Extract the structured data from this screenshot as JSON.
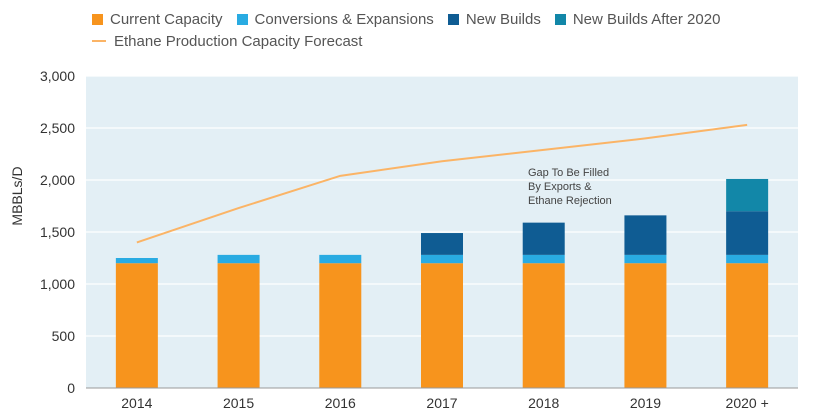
{
  "chart_data": {
    "type": "bar",
    "stacked": true,
    "categories": [
      "2014",
      "2015",
      "2016",
      "2017",
      "2018",
      "2019",
      "2020 +"
    ],
    "series": [
      {
        "name": "Current Capacity",
        "color": "#F7941D",
        "values": [
          1200,
          1200,
          1200,
          1200,
          1200,
          1200,
          1200
        ]
      },
      {
        "name": "Conversions & Expansions",
        "color": "#29ABE2",
        "values": [
          50,
          80,
          80,
          80,
          80,
          80,
          80
        ]
      },
      {
        "name": "New Builds",
        "color": "#0F5C93",
        "values": [
          0,
          0,
          0,
          210,
          310,
          380,
          420
        ]
      },
      {
        "name": "New Builds After 2020",
        "color": "#1287A8",
        "values": [
          0,
          0,
          0,
          0,
          0,
          0,
          310
        ]
      }
    ],
    "line_series": {
      "name": "Ethane Production Capacity Forecast",
      "color": "#FBB466",
      "values": [
        1400,
        1730,
        2040,
        2180,
        2290,
        2400,
        2530
      ]
    },
    "ylabel": "MBBLs/D",
    "ylim": [
      0,
      3000
    ],
    "yticks": [
      "0",
      "500",
      "1,000",
      "1,500",
      "2,000",
      "2,500",
      "3,000"
    ],
    "annotation": [
      "Gap To Be Filled",
      "By Exports &",
      "Ethane Rejection"
    ],
    "grid": true,
    "legend_position": "top-left",
    "plot_background": "#E3EFF5"
  }
}
